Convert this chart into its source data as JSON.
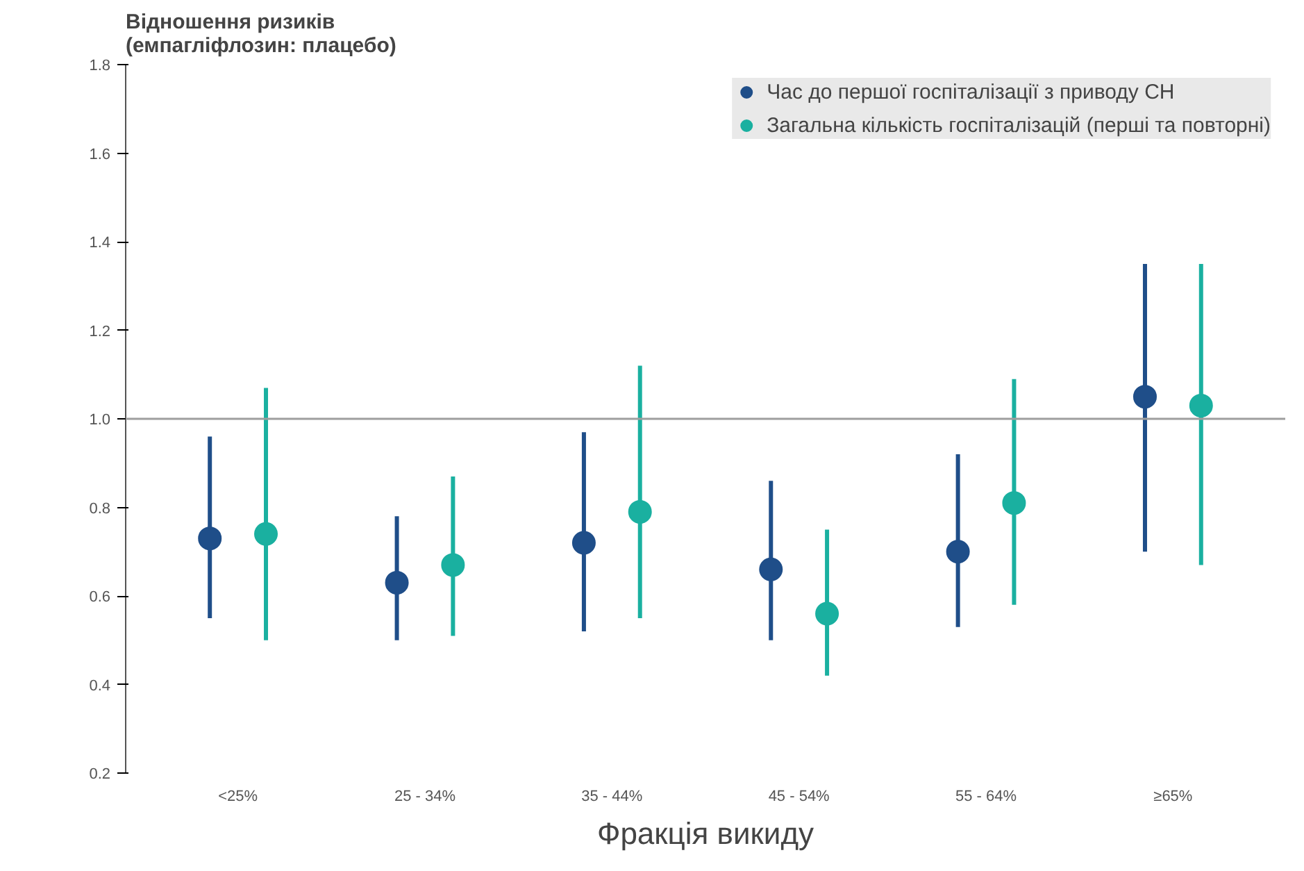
{
  "chart_data": {
    "type": "scatter",
    "ylabel": "Відношення ризиків\n(емпагліфлозин: плацебо)",
    "xlabel": "Фракція викиду",
    "categories": [
      "<25%",
      "25 - 34%",
      "35 - 44%",
      "45 - 54%",
      "55 - 64%",
      "≥65%"
    ],
    "ylim": [
      0.2,
      1.8
    ],
    "yticks": [
      0.2,
      0.4,
      0.6,
      0.8,
      {
        "value": 1.0,
        "label": "1.0"
      },
      1.2,
      1.4,
      1.6,
      1.8
    ],
    "grid": false,
    "legend": "top right",
    "marker": "circle",
    "ref_lines": [
      {
        "axis": "y",
        "value": 1.0,
        "color": "#9e9e9e"
      }
    ],
    "series": [
      {
        "name": "Час до першої госпіталізації з приводу СН",
        "color": "#1f4e89",
        "values": [
          0.73,
          0.63,
          0.72,
          0.66,
          0.7,
          1.05
        ],
        "errors": [
          [
            0.55,
            0.96
          ],
          [
            0.5,
            0.78
          ],
          [
            0.52,
            0.97
          ],
          [
            0.5,
            0.86
          ],
          [
            0.53,
            0.92
          ],
          [
            0.7,
            1.35
          ]
        ]
      },
      {
        "name": "Загальна кількість госпіталізацій (перші та повторні)",
        "color": "#1ab0a0",
        "values": [
          0.74,
          0.67,
          0.79,
          0.56,
          0.81,
          1.03
        ],
        "errors": [
          [
            0.5,
            1.07
          ],
          [
            0.51,
            0.87
          ],
          [
            0.55,
            1.12
          ],
          [
            0.42,
            0.75
          ],
          [
            0.58,
            1.09
          ],
          [
            0.67,
            1.35
          ]
        ]
      }
    ]
  }
}
